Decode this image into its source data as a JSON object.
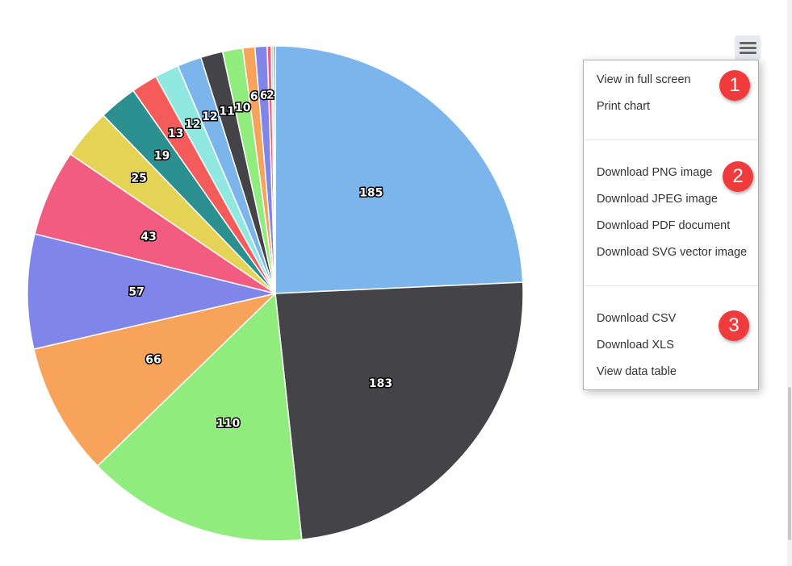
{
  "chart_data": {
    "type": "pie",
    "values": [
      185,
      183,
      110,
      66,
      57,
      43,
      25,
      19,
      13,
      12,
      12,
      11,
      10,
      6,
      6,
      2,
      1,
      1
    ],
    "labels": [
      "185",
      "183",
      "110",
      "66",
      "57",
      "43",
      "25",
      "19",
      "13",
      "12",
      "12",
      "11",
      "10",
      "6",
      "6",
      "2",
      "",
      ""
    ],
    "colors": [
      "#7cb5ec",
      "#434348",
      "#90ed7d",
      "#f7a35c",
      "#8085e9",
      "#f15c80",
      "#e4d354",
      "#2b908f",
      "#f45b5b",
      "#91e8e1",
      "#7cb5ec",
      "#434348",
      "#90ed7d",
      "#f7a35c",
      "#8085e9",
      "#f15c80",
      "#e4d354",
      "#2b908f"
    ],
    "legend": "none"
  },
  "menu": {
    "button_icon": "hamburger-menu-icon",
    "groups": [
      {
        "items": [
          "View in full screen",
          "Print chart"
        ],
        "badge": "1"
      },
      {
        "items": [
          "Download PNG image",
          "Download JPEG image",
          "Download PDF document",
          "Download SVG vector image"
        ],
        "badge": "2"
      },
      {
        "items": [
          "Download CSV",
          "Download XLS",
          "View data table"
        ],
        "badge": "3"
      }
    ]
  },
  "colors": {
    "badge": "#ef3b3b",
    "menu_button_bg": "#e6e9f2"
  }
}
